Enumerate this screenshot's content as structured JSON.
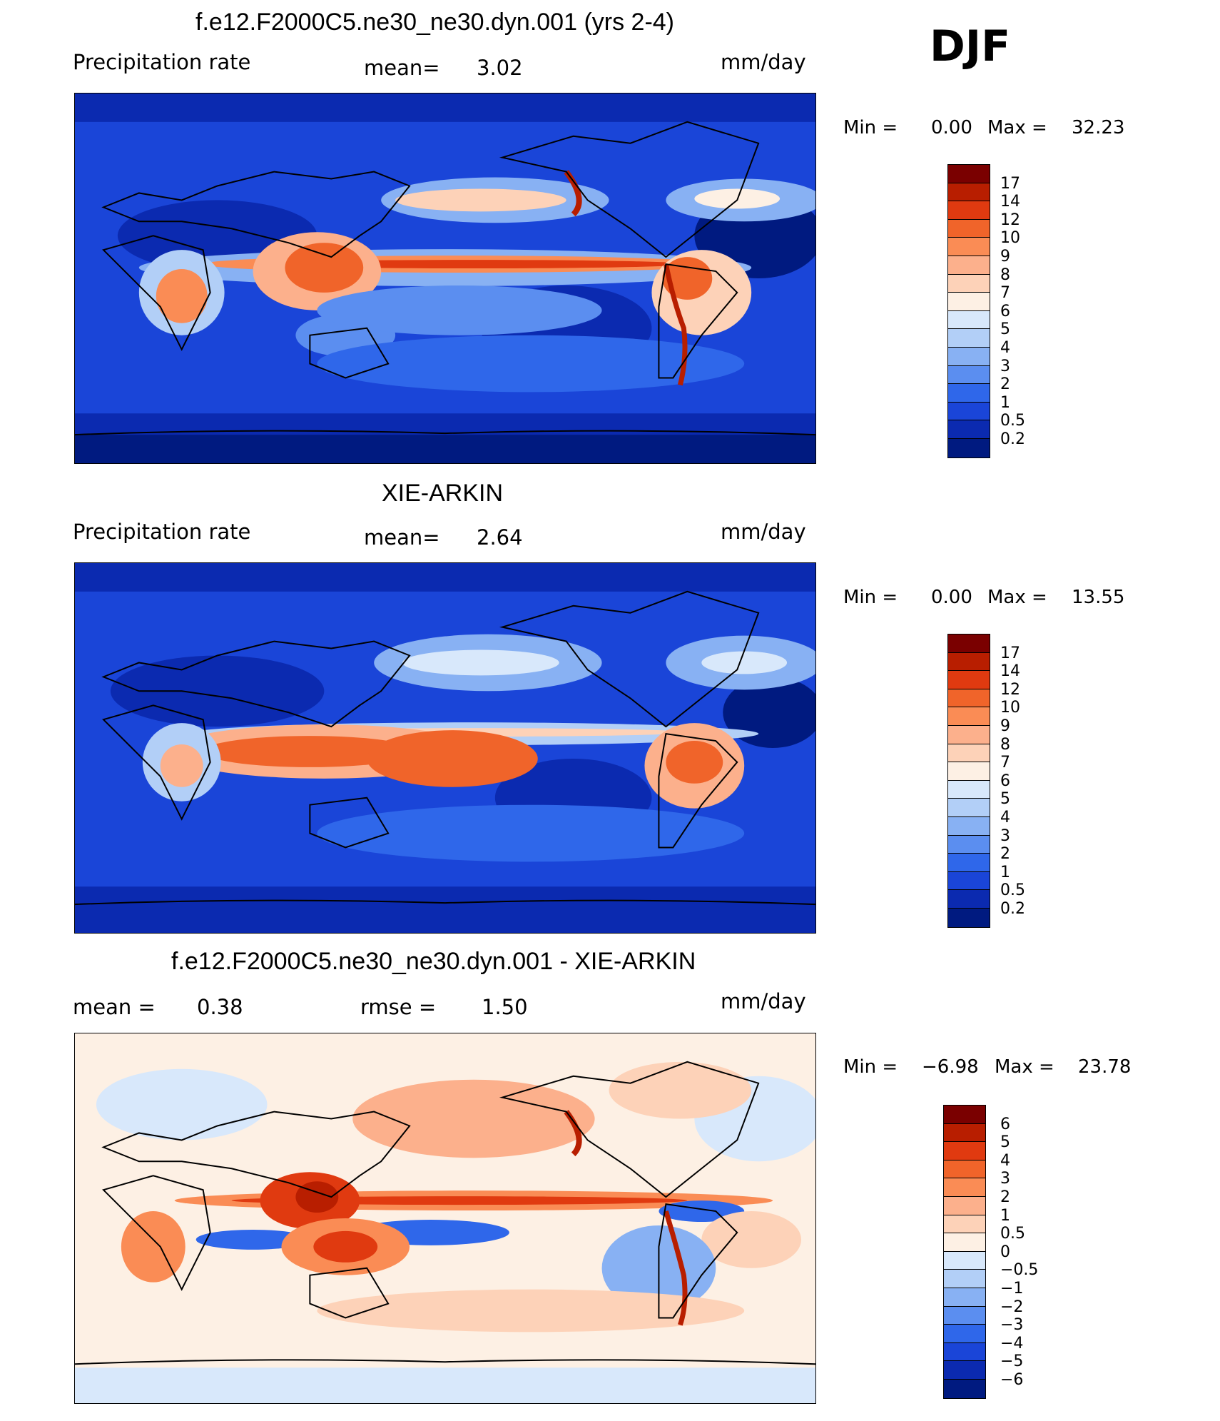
{
  "season": "DJF",
  "panels": [
    {
      "title": "f.e12.F2000C5.ne30_ne30.dyn.001 (yrs 2-4)",
      "left_label": "Precipitation  rate",
      "center_label": "mean=",
      "center_value": "3.02",
      "units": "mm/day",
      "min_label": "Min =",
      "min_value": "0.00",
      "max_label": "Max =",
      "max_value": "32.23"
    },
    {
      "title": "XIE-ARKIN",
      "left_label": "Precipitation  rate",
      "center_label": "mean=",
      "center_value": "2.64",
      "units": "mm/day",
      "min_label": "Min =",
      "min_value": "0.00",
      "max_label": "Max =",
      "max_value": "13.55"
    },
    {
      "title": "f.e12.F2000C5.ne30_ne30.dyn.001 - XIE-ARKIN",
      "left_label": "mean =",
      "left_value": "0.38",
      "center_label": "rmse =",
      "center_value": "1.50",
      "units": "mm/day",
      "min_label": "Min =",
      "min_value": "−6.98",
      "max_label": "Max =",
      "max_value": "23.78"
    }
  ],
  "colorbars": {
    "precip_levels": [
      "17",
      "14",
      "12",
      "10",
      "9",
      "8",
      "7",
      "6",
      "5",
      "4",
      "3",
      "2",
      "1",
      "0.5",
      "0.2"
    ],
    "precip_colors": [
      "#7a0000",
      "#b81e00",
      "#e03a10",
      "#f0642a",
      "#fa8c55",
      "#fcb08c",
      "#fdd2b8",
      "#fdf0e4",
      "#d8e8fb",
      "#b2cff7",
      "#88b1f3",
      "#5b8ef0",
      "#2f67ea",
      "#1a45d8",
      "#0b2ab0",
      "#001a80"
    ],
    "diff_levels": [
      "6",
      "5",
      "4",
      "3",
      "2",
      "1",
      "0.5",
      "0",
      "−0.5",
      "−1",
      "−2",
      "−3",
      "−4",
      "−5",
      "−6"
    ],
    "diff_colors": [
      "#7a0000",
      "#b81e00",
      "#e03a10",
      "#f0642a",
      "#fa8c55",
      "#fcb08c",
      "#fdd2b8",
      "#fdf0e4",
      "#d8e8fb",
      "#b2cff7",
      "#88b1f3",
      "#5b8ef0",
      "#2f67ea",
      "#1a45d8",
      "#0b2ab0",
      "#001a80"
    ]
  },
  "chart_data": [
    {
      "type": "heatmap",
      "title": "f.e12.F2000C5.ne30_ne30.dyn.001 (yrs 2-4)",
      "field": "Precipitation rate",
      "units": "mm/day",
      "season": "DJF",
      "mean": 3.02,
      "min": 0.0,
      "max": 32.23,
      "contour_levels": [
        0.2,
        0.5,
        1,
        2,
        3,
        4,
        5,
        6,
        7,
        8,
        9,
        10,
        12,
        14,
        17
      ]
    },
    {
      "type": "heatmap",
      "title": "XIE-ARKIN",
      "field": "Precipitation rate",
      "units": "mm/day",
      "season": "DJF",
      "mean": 2.64,
      "min": 0.0,
      "max": 13.55,
      "contour_levels": [
        0.2,
        0.5,
        1,
        2,
        3,
        4,
        5,
        6,
        7,
        8,
        9,
        10,
        12,
        14,
        17
      ]
    },
    {
      "type": "heatmap",
      "title": "f.e12.F2000C5.ne30_ne30.dyn.001 - XIE-ARKIN",
      "units": "mm/day",
      "season": "DJF",
      "mean": 0.38,
      "rmse": 1.5,
      "min": -6.98,
      "max": 23.78,
      "contour_levels": [
        -6,
        -5,
        -4,
        -3,
        -2,
        -1,
        -0.5,
        0,
        0.5,
        1,
        2,
        3,
        4,
        5,
        6
      ]
    }
  ]
}
